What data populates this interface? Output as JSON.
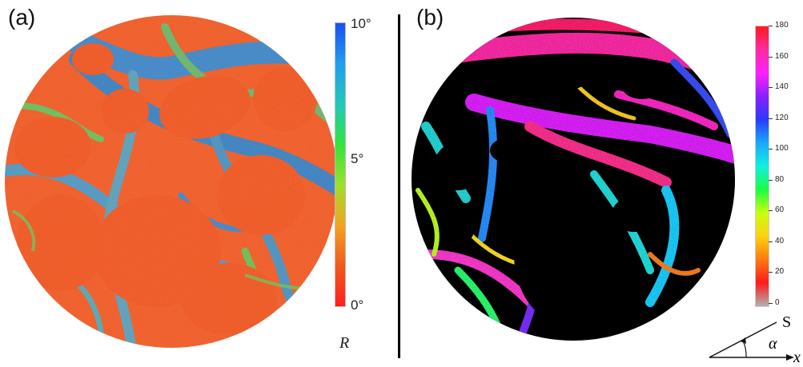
{
  "panel_a": {
    "label": "(a)",
    "colorbar": {
      "ticks": [
        "10°",
        "5°",
        "0°"
      ],
      "quantity": "R",
      "gradient": [
        "#1a4ff2",
        "#1f9ef0",
        "#20c9b8",
        "#2ee63a",
        "#9de02a",
        "#f5a21f",
        "#f05a1b",
        "#ff1f1f"
      ]
    }
  },
  "panel_b": {
    "label": "(b)",
    "colorbar": {
      "ticks": [
        "180",
        "160",
        "140",
        "120",
        "100",
        "80",
        "60",
        "40",
        "20",
        "0"
      ],
      "gradient": [
        "#ff1a1a",
        "#ff2aa0",
        "#ff20ff",
        "#8a20ff",
        "#2a3aff",
        "#1aa8ff",
        "#10f0e0",
        "#18ff40",
        "#c8ff10",
        "#ffd010",
        "#ff7a10",
        "#ff1a1a",
        "#b0b0b0"
      ]
    },
    "angle_diagram": {
      "axis_x": "x",
      "axis_s": "S",
      "angle": "α"
    }
  },
  "colors": {
    "tissue_orange": "#ee5a2a",
    "network_blue": "#3a86c8",
    "network_green": "#6cc25a",
    "background_black": "#000000",
    "divider": "#000000"
  }
}
